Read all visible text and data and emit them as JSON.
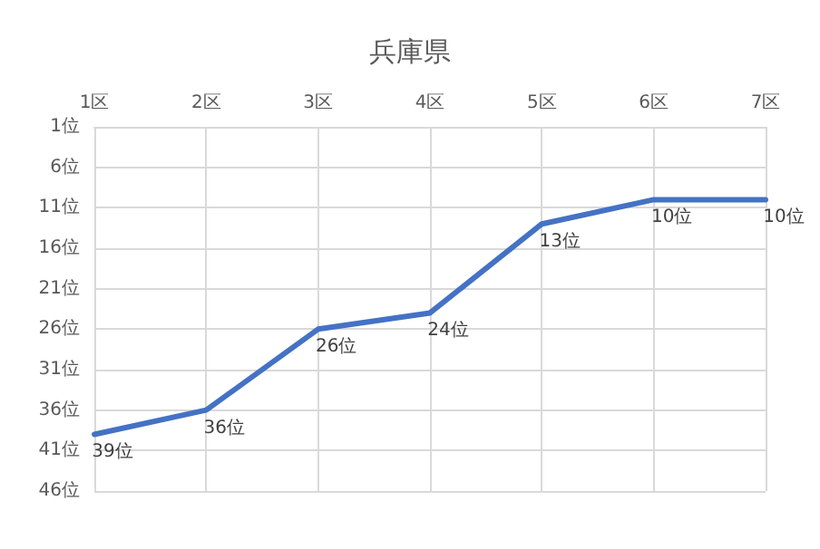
{
  "chart_data": {
    "type": "line",
    "title": "兵庫県",
    "categories": [
      "1区",
      "2区",
      "3区",
      "4区",
      "5区",
      "6区",
      "7区"
    ],
    "series": [
      {
        "color": "#4472c4",
        "values": [
          39,
          36,
          26,
          24,
          13,
          10,
          10
        ],
        "value_labels": [
          "39位",
          "36位",
          "26位",
          "24位",
          "13位",
          "10位",
          "10位"
        ]
      }
    ],
    "ylim": [
      46,
      1
    ],
    "yticks": [
      {
        "value": 1,
        "label": "1位"
      },
      {
        "value": 6,
        "label": "6位"
      },
      {
        "value": 11,
        "label": "11位"
      },
      {
        "value": 16,
        "label": "16位"
      },
      {
        "value": 21,
        "label": "21位"
      },
      {
        "value": 26,
        "label": "26位"
      },
      {
        "value": 31,
        "label": "31位"
      },
      {
        "value": 36,
        "label": "36位"
      },
      {
        "value": 41,
        "label": "41位"
      },
      {
        "value": 46,
        "label": "46位"
      }
    ],
    "grid": true,
    "marker": "none",
    "line_style": "solid"
  }
}
